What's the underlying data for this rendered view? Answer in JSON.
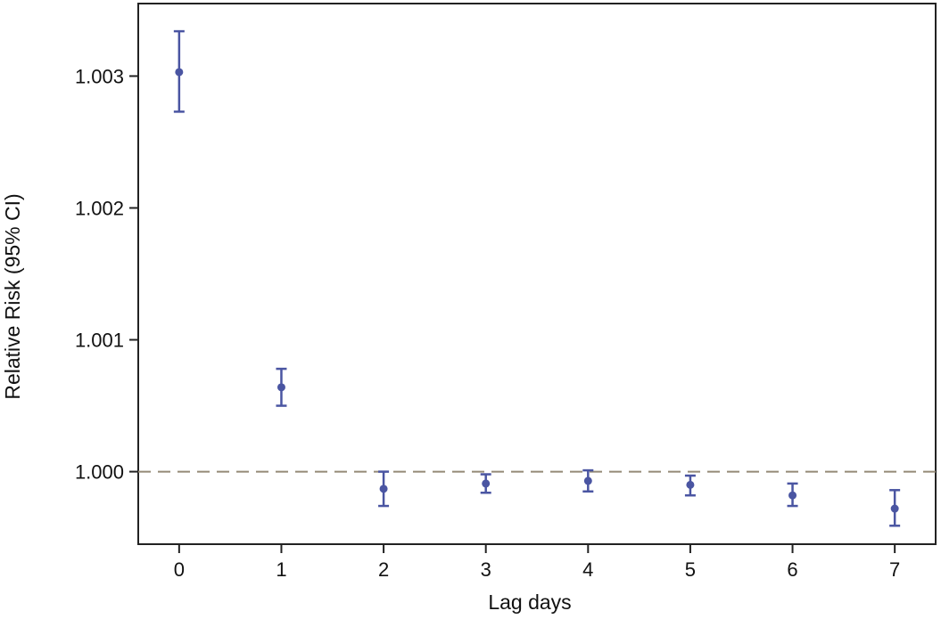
{
  "chart_data": {
    "type": "scatter",
    "subtype": "point-with-error-bars",
    "title": "",
    "xlabel": "Lag days",
    "ylabel": "Relative Risk (95% CI)",
    "x_ticks": [
      "0",
      "1",
      "2",
      "3",
      "4",
      "5",
      "6",
      "7"
    ],
    "y_ticks": [
      "1.000",
      "1.001",
      "1.002",
      "1.003"
    ],
    "xlim": [
      -0.4,
      7.4
    ],
    "ylim": [
      0.99945,
      1.00355
    ],
    "reference_line": 1.0,
    "grid": false,
    "series": [
      {
        "x": [
          0,
          1,
          2,
          3,
          4,
          5,
          6,
          7
        ],
        "values": [
          1.00303,
          1.00064,
          0.99987,
          0.99991,
          0.99993,
          0.9999,
          0.99982,
          0.99972
        ],
        "ci_lower": [
          1.00273,
          1.0005,
          0.99974,
          0.99984,
          0.99985,
          0.99982,
          0.99974,
          0.99959
        ],
        "ci_upper": [
          1.00334,
          1.00078,
          1.0,
          0.99998,
          1.00001,
          0.99997,
          0.99991,
          0.99986
        ]
      }
    ],
    "colors": {
      "series": "#4a55a2",
      "reference_line": "#948a76",
      "axis": "#222222"
    }
  }
}
